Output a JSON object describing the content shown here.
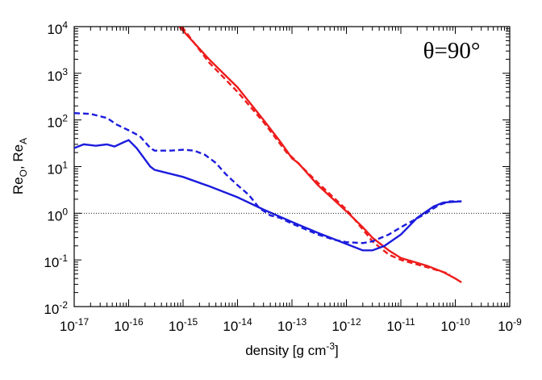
{
  "chart_data": {
    "type": "line",
    "annotation": "θ=90°",
    "xlabel": "density [g cm^-3]",
    "ylabel": "Re_O, Re_A",
    "xscale": "log",
    "yscale": "log",
    "xlim": [
      1e-17,
      1e-09
    ],
    "ylim": [
      0.01,
      10000
    ],
    "xticks": [
      {
        "value": 1e-17,
        "label": "10^-17"
      },
      {
        "value": 1e-16,
        "label": "10^-16"
      },
      {
        "value": 1e-15,
        "label": "10^-15"
      },
      {
        "value": 1e-14,
        "label": "10^-14"
      },
      {
        "value": 1e-13,
        "label": "10^-13"
      },
      {
        "value": 1e-12,
        "label": "10^-12"
      },
      {
        "value": 1e-11,
        "label": "10^-11"
      },
      {
        "value": 1e-10,
        "label": "10^-10"
      },
      {
        "value": 1e-09,
        "label": "10^-9"
      }
    ],
    "yticks": [
      {
        "value": 0.01,
        "label": "10^-2"
      },
      {
        "value": 0.1,
        "label": "10^-1"
      },
      {
        "value": 1,
        "label": "10^0"
      },
      {
        "value": 10,
        "label": "10^1"
      },
      {
        "value": 100,
        "label": "10^2"
      },
      {
        "value": 1000,
        "label": "10^3"
      },
      {
        "value": 10000,
        "label": "10^4"
      }
    ],
    "hline": 1,
    "series": [
      {
        "color": "#ee1c1c",
        "dash": false,
        "x": [
          8.5e-16,
          3e-15,
          1e-14,
          3e-14,
          6e-14,
          8e-14,
          1e-13,
          1.3e-13,
          3e-13,
          1e-12,
          2e-12,
          3e-12,
          6e-12,
          1e-11,
          3e-11,
          6e-11,
          1e-10,
          1.3e-10
        ],
        "values": [
          10000,
          2000,
          500,
          100,
          35,
          22,
          15,
          12,
          4,
          1.1,
          0.5,
          0.3,
          0.16,
          0.11,
          0.075,
          0.055,
          0.04,
          0.033
        ]
      },
      {
        "color": "#ee1c1c",
        "dash": true,
        "x": [
          9.5e-16,
          3e-15,
          1e-14,
          3e-14,
          8e-14,
          1e-13,
          3e-13,
          1e-12,
          2e-12,
          3e-12,
          6e-12,
          1e-11,
          3e-11,
          6e-11,
          8e-11
        ],
        "values": [
          10000,
          1700,
          400,
          90,
          20,
          16,
          4.5,
          1.2,
          0.45,
          0.25,
          0.13,
          0.1,
          0.07,
          0.055,
          0.05
        ]
      },
      {
        "color": "#1c1cdd",
        "dash": false,
        "x": [
          1e-17,
          1.5e-17,
          2.5e-17,
          4e-17,
          5.5e-17,
          8e-17,
          1e-16,
          1.4e-16,
          2.5e-16,
          3e-16,
          1e-15,
          3e-15,
          1e-14,
          3e-14,
          1e-13,
          3e-13,
          1e-12,
          2e-12,
          3e-12,
          5e-12,
          1e-11,
          2e-11,
          4e-11,
          6e-11,
          1.3e-10
        ],
        "values": [
          25,
          30,
          28,
          30,
          27,
          33,
          37,
          25,
          10,
          8.5,
          6,
          3.8,
          2.2,
          1.2,
          0.65,
          0.38,
          0.22,
          0.16,
          0.16,
          0.2,
          0.35,
          0.8,
          1.4,
          1.7,
          1.8
        ]
      },
      {
        "color": "#1c1cdd",
        "dash": true,
        "x": [
          1e-17,
          2e-17,
          4e-17,
          6e-17,
          1e-16,
          1.6e-16,
          2.5e-16,
          3e-16,
          6e-16,
          1e-15,
          1.6e-15,
          2.5e-15,
          4e-15,
          6e-15,
          1e-14,
          1.6e-14,
          2.5e-14,
          4e-14,
          6e-14,
          1e-13,
          3e-13,
          6e-13,
          1e-12,
          2e-12,
          3e-12,
          6e-12,
          1e-11,
          2.5e-11,
          5e-11,
          8e-11,
          1.3e-10
        ],
        "values": [
          140,
          135,
          110,
          80,
          60,
          45,
          25,
          22,
          22,
          23,
          22,
          18,
          12,
          7,
          4,
          2.5,
          1.3,
          0.9,
          0.8,
          0.6,
          0.35,
          0.27,
          0.24,
          0.23,
          0.25,
          0.35,
          0.5,
          0.9,
          1.5,
          1.8,
          1.8
        ]
      }
    ]
  }
}
